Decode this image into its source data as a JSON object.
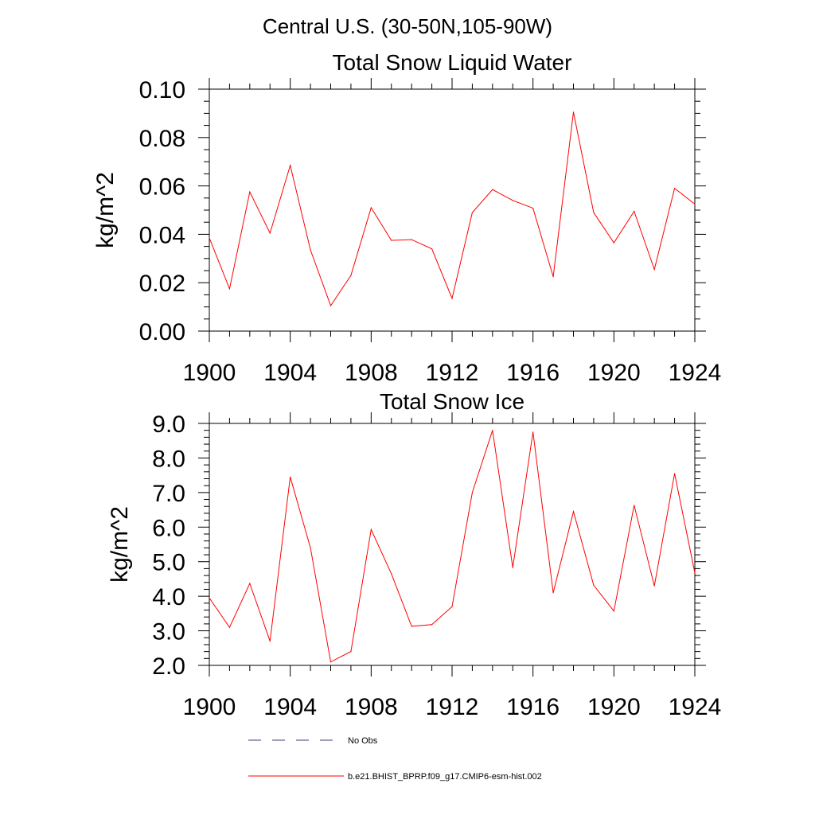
{
  "figure": {
    "main_title": "Central U.S. (30-50N,105-90W)"
  },
  "chart_data": [
    {
      "type": "line",
      "title": "Total Snow Liquid Water",
      "ylabel": "kg/m^2",
      "xlabel": "",
      "xlim": [
        1900,
        1924
      ],
      "ylim": [
        0.0,
        0.1
      ],
      "x_ticks": [
        "1900",
        "1904",
        "1908",
        "1912",
        "1916",
        "1920",
        "1924"
      ],
      "y_ticks": [
        "0.00",
        "0.02",
        "0.04",
        "0.06",
        "0.08",
        "0.10"
      ],
      "x": [
        1900,
        1901,
        1902,
        1903,
        1904,
        1905,
        1906,
        1907,
        1908,
        1909,
        1910,
        1911,
        1912,
        1913,
        1914,
        1915,
        1916,
        1917,
        1918,
        1919,
        1920,
        1921,
        1922,
        1923,
        1924
      ],
      "series": [
        {
          "name": "b.e21.BHIST_BPRP.f09_g17.CMIP6-esm-hist.002",
          "color": "#ff0000",
          "values": [
            0.0385,
            0.0175,
            0.0575,
            0.0405,
            0.0685,
            0.0335,
            0.0105,
            0.023,
            0.051,
            0.0375,
            0.0378,
            0.034,
            0.0135,
            0.049,
            0.0585,
            0.054,
            0.0508,
            0.0225,
            0.0905,
            0.049,
            0.0365,
            0.0495,
            0.0255,
            0.059,
            0.0525
          ]
        }
      ]
    },
    {
      "type": "line",
      "title": "Total Snow Ice",
      "ylabel": "kg/m^2",
      "xlabel": "",
      "xlim": [
        1900,
        1924
      ],
      "ylim": [
        2.0,
        9.0
      ],
      "x_ticks": [
        "1900",
        "1904",
        "1908",
        "1912",
        "1916",
        "1920",
        "1924"
      ],
      "y_ticks": [
        "2.0",
        "3.0",
        "4.0",
        "5.0",
        "6.0",
        "7.0",
        "8.0",
        "9.0"
      ],
      "x": [
        1900,
        1901,
        1902,
        1903,
        1904,
        1905,
        1906,
        1907,
        1908,
        1909,
        1910,
        1911,
        1912,
        1913,
        1914,
        1915,
        1916,
        1917,
        1918,
        1919,
        1920,
        1921,
        1922,
        1923,
        1924
      ],
      "series": [
        {
          "name": "b.e21.BHIST_BPRP.f09_g17.CMIP6-esm-hist.002",
          "color": "#ff0000",
          "values": [
            3.95,
            3.1,
            4.37,
            2.7,
            7.45,
            5.4,
            2.1,
            2.4,
            5.93,
            4.65,
            3.13,
            3.18,
            3.7,
            7.0,
            8.8,
            4.83,
            8.75,
            4.1,
            6.45,
            4.32,
            3.57,
            6.63,
            4.3,
            7.55,
            4.68
          ]
        }
      ]
    }
  ],
  "legend": {
    "entries": [
      {
        "label": "No Obs",
        "style": "dashed",
        "color": "#3b3b7a"
      },
      {
        "label": "b.e21.BHIST_BPRP.f09_g17.CMIP6-esm-hist.002",
        "style": "solid",
        "color": "#ff0000"
      }
    ]
  }
}
